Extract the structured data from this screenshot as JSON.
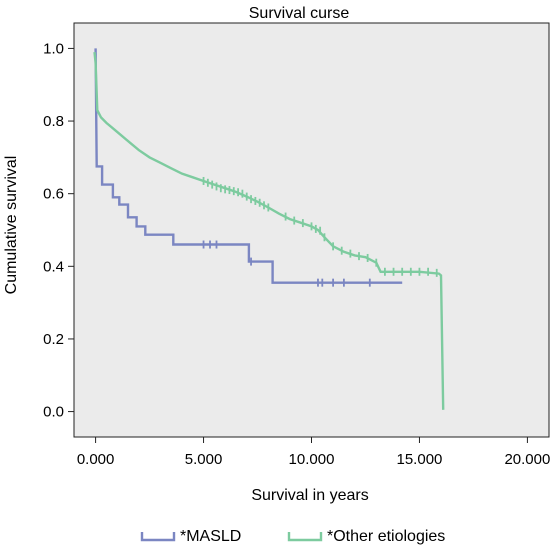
{
  "chart_data": {
    "type": "line",
    "title": "Survival curse",
    "xlabel": "Survival in years",
    "ylabel": "Cumulative survival",
    "xlim": [
      -1000,
      21000
    ],
    "ylim": [
      -0.07,
      1.07
    ],
    "xticks": [
      0,
      5000,
      10000,
      15000,
      20000
    ],
    "xtick_labels": [
      "0.000",
      "5.000",
      "10.000",
      "15.000",
      "20.000"
    ],
    "yticks": [
      0.0,
      0.2,
      0.4,
      0.6,
      0.8,
      1.0
    ],
    "ytick_labels": [
      "0.0",
      "0.2",
      "0.4",
      "0.6",
      "0.8",
      "1.0"
    ],
    "background": "#ebebeb",
    "legend_position": "bottom",
    "series": [
      {
        "name": "*MASLD",
        "color": "#7b86c2",
        "step": true,
        "points": [
          [
            0,
            1.0
          ],
          [
            30,
            0.82
          ],
          [
            50,
            0.675
          ],
          [
            300,
            0.675
          ],
          [
            300,
            0.625
          ],
          [
            800,
            0.625
          ],
          [
            800,
            0.59
          ],
          [
            1100,
            0.59
          ],
          [
            1100,
            0.57
          ],
          [
            1500,
            0.57
          ],
          [
            1500,
            0.535
          ],
          [
            1900,
            0.535
          ],
          [
            1900,
            0.51
          ],
          [
            2300,
            0.51
          ],
          [
            2300,
            0.487
          ],
          [
            3600,
            0.487
          ],
          [
            3600,
            0.46
          ],
          [
            7100,
            0.46
          ],
          [
            7100,
            0.413
          ],
          [
            8200,
            0.413
          ],
          [
            8200,
            0.355
          ],
          [
            14200,
            0.355
          ]
        ],
        "censors": [
          [
            5000,
            0.46
          ],
          [
            5300,
            0.46
          ],
          [
            5600,
            0.46
          ],
          [
            7200,
            0.413
          ],
          [
            10300,
            0.355
          ],
          [
            10500,
            0.355
          ],
          [
            11000,
            0.355
          ],
          [
            11500,
            0.355
          ],
          [
            12700,
            0.355
          ]
        ]
      },
      {
        "name": "*Other etiologies",
        "color": "#7dcb9f",
        "step": false,
        "points": [
          [
            -50,
            0.99
          ],
          [
            0,
            0.96
          ],
          [
            80,
            0.83
          ],
          [
            250,
            0.81
          ],
          [
            500,
            0.795
          ],
          [
            800,
            0.78
          ],
          [
            1200,
            0.76
          ],
          [
            1600,
            0.74
          ],
          [
            2000,
            0.72
          ],
          [
            2500,
            0.7
          ],
          [
            3000,
            0.685
          ],
          [
            3500,
            0.67
          ],
          [
            4000,
            0.655
          ],
          [
            4500,
            0.645
          ],
          [
            5000,
            0.635
          ],
          [
            5500,
            0.625
          ],
          [
            6000,
            0.615
          ],
          [
            6500,
            0.605
          ],
          [
            7000,
            0.592
          ],
          [
            7500,
            0.578
          ],
          [
            8000,
            0.562
          ],
          [
            8500,
            0.545
          ],
          [
            9000,
            0.53
          ],
          [
            9500,
            0.52
          ],
          [
            10000,
            0.51
          ],
          [
            10300,
            0.5
          ],
          [
            10600,
            0.48
          ],
          [
            11000,
            0.455
          ],
          [
            11500,
            0.44
          ],
          [
            12000,
            0.43
          ],
          [
            12500,
            0.425
          ],
          [
            13000,
            0.41
          ],
          [
            13200,
            0.385
          ],
          [
            14000,
            0.385
          ],
          [
            15000,
            0.385
          ],
          [
            15900,
            0.38
          ],
          [
            16000,
            0.375
          ],
          [
            16100,
            0.005
          ]
        ],
        "censors": [
          [
            5000,
            0.635
          ],
          [
            5200,
            0.63
          ],
          [
            5400,
            0.625
          ],
          [
            5600,
            0.62
          ],
          [
            5800,
            0.615
          ],
          [
            6000,
            0.612
          ],
          [
            6200,
            0.61
          ],
          [
            6400,
            0.607
          ],
          [
            6600,
            0.604
          ],
          [
            6800,
            0.6
          ],
          [
            7000,
            0.592
          ],
          [
            7200,
            0.585
          ],
          [
            7400,
            0.58
          ],
          [
            7600,
            0.575
          ],
          [
            7800,
            0.568
          ],
          [
            8000,
            0.562
          ],
          [
            8800,
            0.537
          ],
          [
            9200,
            0.526
          ],
          [
            9600,
            0.519
          ],
          [
            10000,
            0.51
          ],
          [
            10200,
            0.503
          ],
          [
            10400,
            0.498
          ],
          [
            10600,
            0.48
          ],
          [
            11000,
            0.455
          ],
          [
            11400,
            0.443
          ],
          [
            11800,
            0.435
          ],
          [
            12200,
            0.428
          ],
          [
            12600,
            0.423
          ],
          [
            13000,
            0.41
          ],
          [
            13400,
            0.385
          ],
          [
            13800,
            0.385
          ],
          [
            14200,
            0.385
          ],
          [
            14600,
            0.385
          ],
          [
            15000,
            0.385
          ],
          [
            15400,
            0.385
          ],
          [
            15800,
            0.382
          ]
        ]
      }
    ]
  }
}
